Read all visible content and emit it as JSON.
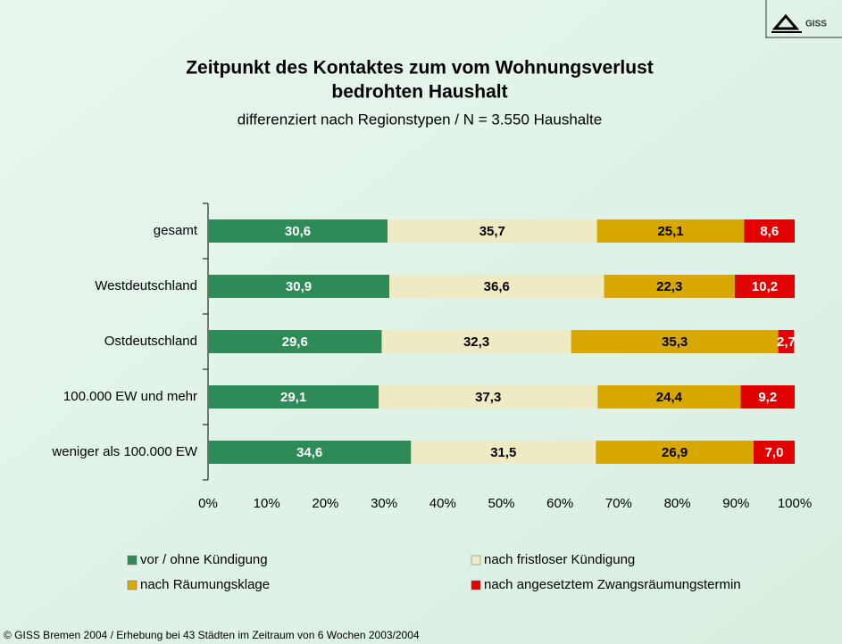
{
  "logo": "GISS",
  "footer": "© GISS Bremen 2004 / Erhebung bei 43 Städten im Zeitraum von 6 Wochen 2003/2004",
  "chart_data": {
    "type": "stacked_bar_horizontal",
    "title": [
      "Zeitpunkt des Kontaktes zum vom Wohnungsverlust",
      "bedrohten Haushalt"
    ],
    "subtitle": "differenziert nach Regionstypen / N = 3.550 Haushalte",
    "categories": [
      "gesamt",
      "Westdeutschland",
      "Ostdeutschland",
      "100.000 EW und mehr",
      "weniger als 100.000 EW"
    ],
    "series": [
      {
        "name": "vor / ohne Kündigung",
        "color": "#2e8b57",
        "label_color": "#ffffff",
        "values": [
          30.6,
          30.9,
          29.6,
          29.1,
          34.6
        ],
        "value_labels": [
          "30,6",
          "30,9",
          "29,6",
          "29,1",
          "34,6"
        ]
      },
      {
        "name": "nach fristloser Kündigung",
        "color": "#eeeac4",
        "label_color": "#000000",
        "values": [
          35.7,
          36.6,
          32.3,
          37.3,
          31.5
        ],
        "value_labels": [
          "35,7",
          "36,6",
          "32,3",
          "37,3",
          "31,5"
        ]
      },
      {
        "name": "nach Räumungsklage",
        "color": "#d9a800",
        "label_color": "#000000",
        "values": [
          25.1,
          22.3,
          35.3,
          24.4,
          26.9
        ],
        "value_labels": [
          "25,1",
          "22,3",
          "35,3",
          "24,4",
          "26,9"
        ]
      },
      {
        "name": "nach angesetztem Zwangsräumungstermin",
        "color": "#e00000",
        "label_color": "#ffffff",
        "values": [
          8.6,
          10.2,
          2.7,
          9.2,
          7.0
        ],
        "value_labels": [
          "8,6",
          "10,2",
          "2,7",
          "9,2",
          "7,0"
        ]
      }
    ],
    "xlim": [
      0,
      100
    ],
    "xticks": [
      {
        "value": 0,
        "label": "0%"
      },
      {
        "value": 10,
        "label": "10%"
      },
      {
        "value": 20,
        "label": "20%"
      },
      {
        "value": 30,
        "label": "30%"
      },
      {
        "value": 40,
        "label": "40%"
      },
      {
        "value": 50,
        "label": "50%"
      },
      {
        "value": 60,
        "label": "60%"
      },
      {
        "value": 70,
        "label": "70%"
      },
      {
        "value": 80,
        "label": "80%"
      },
      {
        "value": 90,
        "label": "90%"
      },
      {
        "value": 100,
        "label": "100%"
      }
    ],
    "grid": false
  }
}
